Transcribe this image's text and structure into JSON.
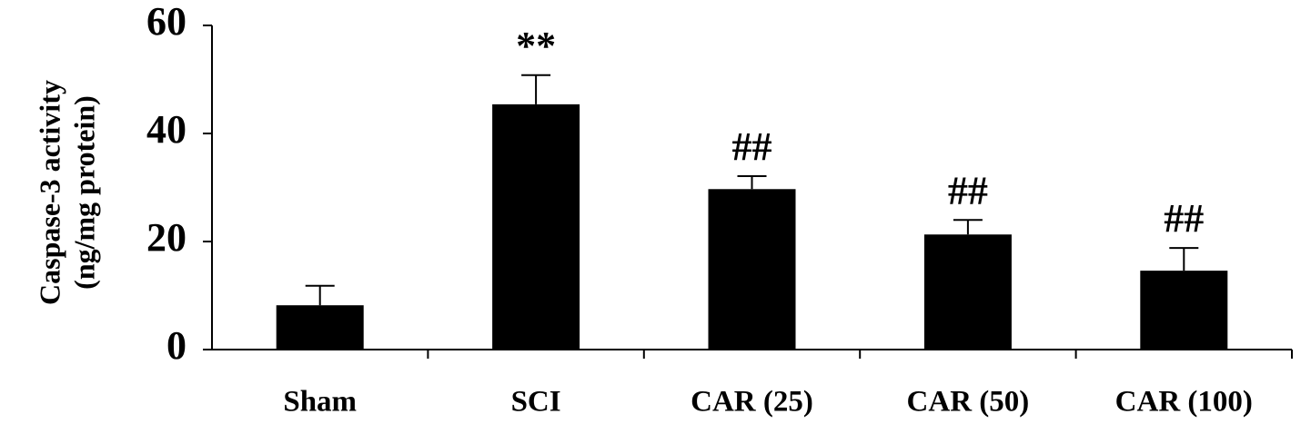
{
  "chart_data": {
    "type": "bar",
    "y_label": [
      "Caspase-3 activity",
      "(ng/mg protein)"
    ],
    "categories": [
      "Sham",
      "SCI",
      "CAR (25)",
      "CAR (50)",
      "CAR (100)"
    ],
    "values": [
      8.2,
      45.4,
      29.7,
      21.3,
      14.6
    ],
    "errors": [
      3.6,
      5.4,
      2.4,
      2.7,
      4.2
    ],
    "annotations": [
      null,
      "**",
      "##",
      "##",
      "##"
    ],
    "color": "#000000",
    "ylim": [
      0,
      60
    ],
    "yticks": [
      0,
      20,
      40,
      60
    ],
    "grid": false
  }
}
